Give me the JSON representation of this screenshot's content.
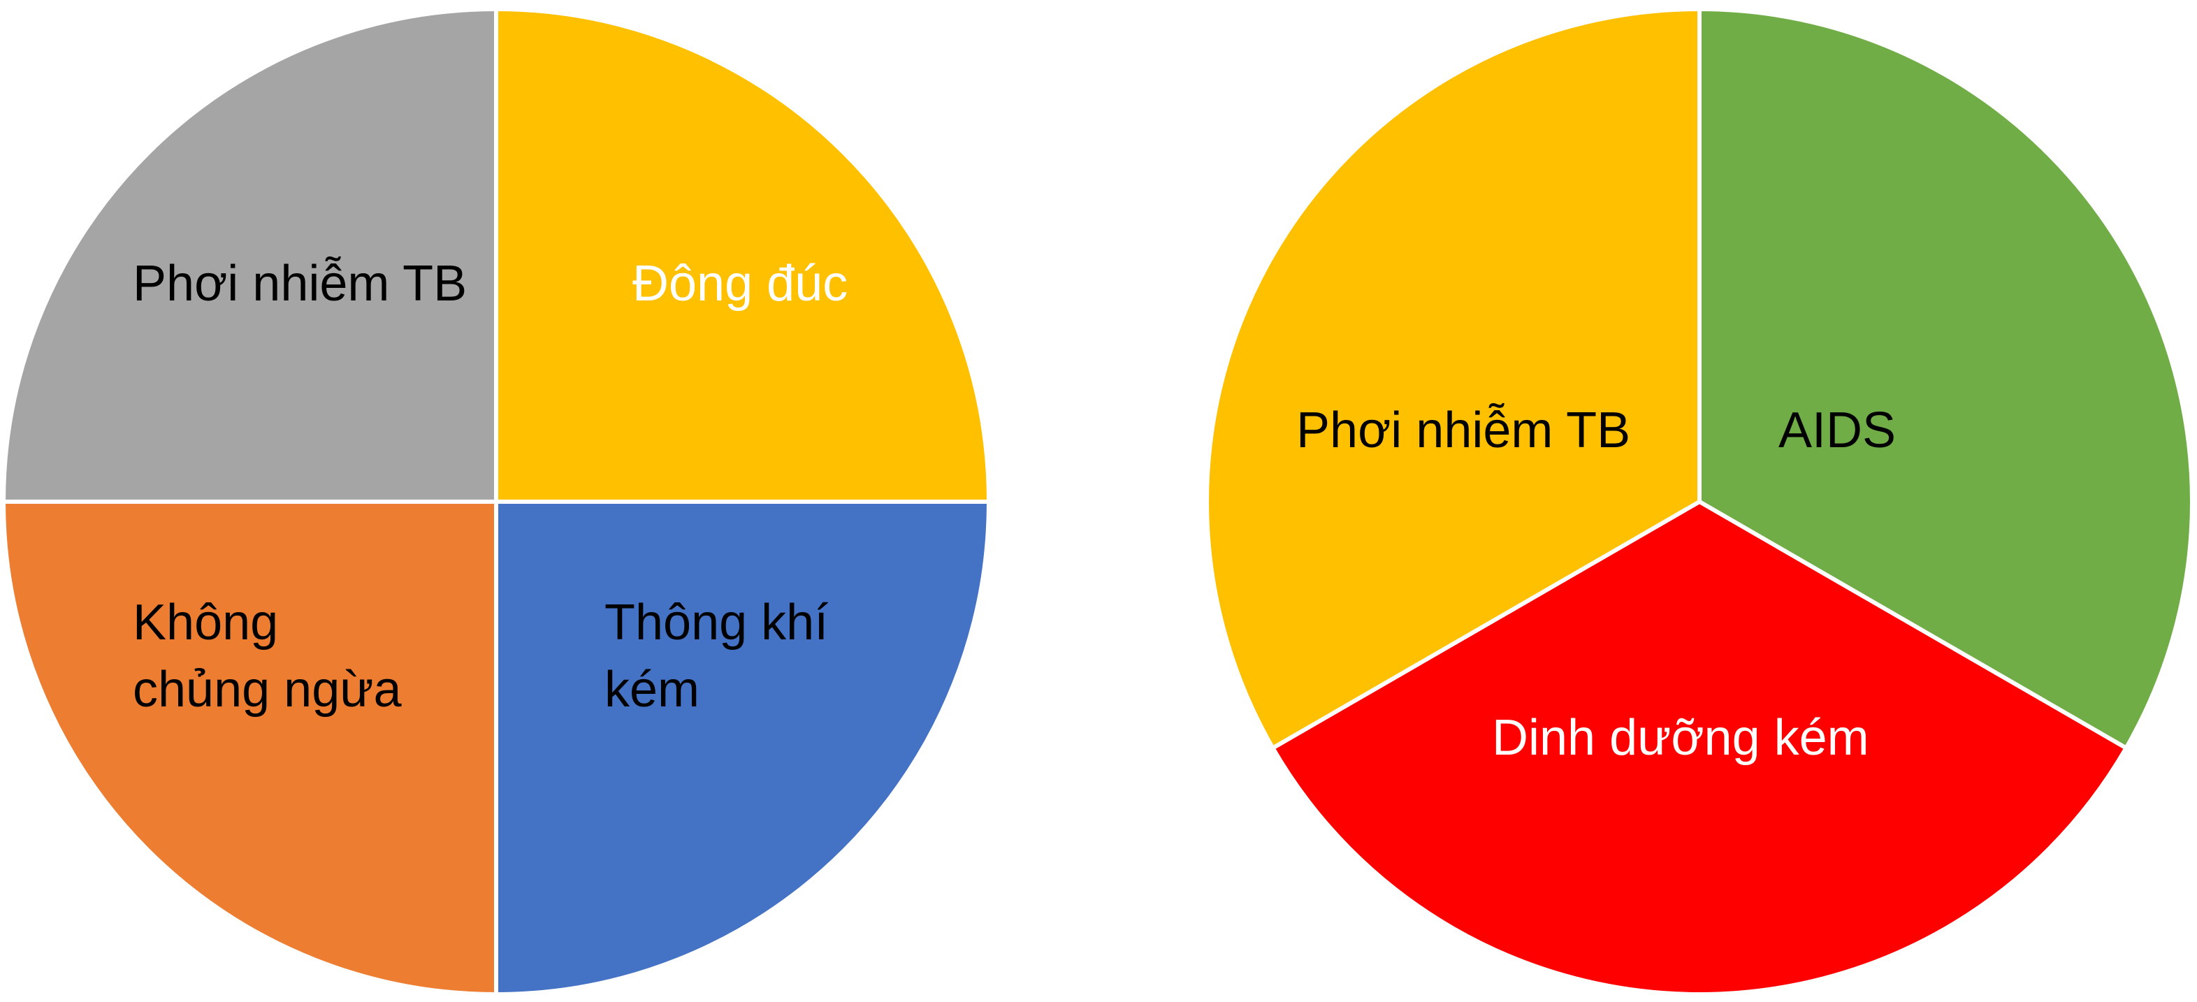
{
  "chart_data": [
    {
      "type": "pie",
      "slices": [
        {
          "label_lines": [
            "Phơi nhiễm TB"
          ],
          "value": 25,
          "color": "#FFC000",
          "text_color": "#000000"
        },
        {
          "label_lines": [
            "Đông đúc"
          ],
          "value": 25,
          "color": "#4472C4",
          "text_color": "#FFFFFF"
        },
        {
          "label_lines": [
            "Thông khí",
            "kém"
          ],
          "value": 25,
          "color": "#ED7D31",
          "text_color": "#000000"
        },
        {
          "label_lines": [
            "Không",
            "chủng ngừa"
          ],
          "value": 25,
          "color": "#A5A5A5",
          "text_color": "#000000"
        }
      ]
    },
    {
      "type": "pie",
      "slices": [
        {
          "label_lines": [
            "AIDS"
          ],
          "value": 33.3,
          "color": "#70AD47",
          "text_color": "#000000"
        },
        {
          "label_lines": [
            "Dinh dưỡng kém"
          ],
          "value": 33.3,
          "color": "#FF0000",
          "text_color": "#FFFFFF"
        },
        {
          "label_lines": [
            "Phơi nhiễm TB"
          ],
          "value": 33.3,
          "color": "#FFC000",
          "text_color": "#000000"
        }
      ]
    }
  ]
}
